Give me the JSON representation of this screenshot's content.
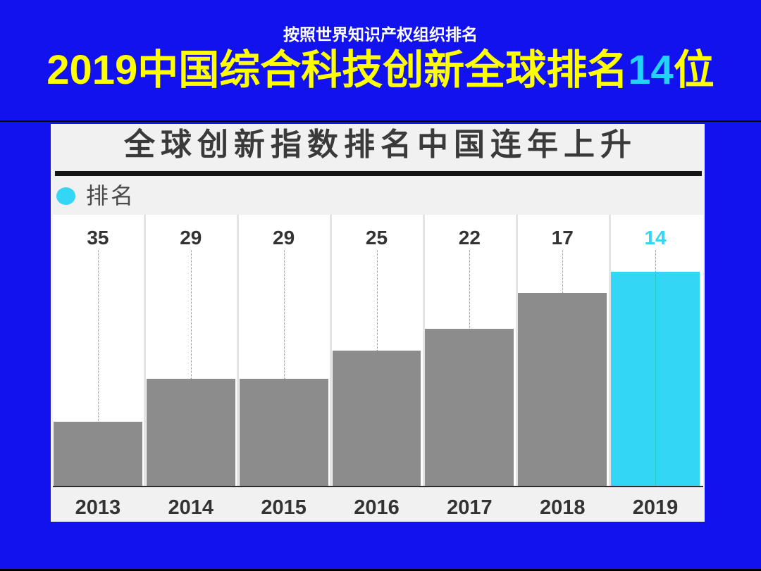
{
  "header": {
    "subtitle": "按照世界知识产权组织排名",
    "title_prefix": "2019中国综合科技创新全球排名",
    "title_highlight": "14",
    "title_suffix": "位"
  },
  "colors": {
    "background": "#1212ef",
    "title": "#ffff00",
    "title_highlight": "#22d3f8",
    "subtitle": "#ffffff",
    "chart_panel": "#f1f1f1"
  },
  "chart_data": {
    "type": "bar",
    "title": "全球创新指数排名中国连年上升",
    "categories": [
      "2013",
      "2014",
      "2015",
      "2016",
      "2017",
      "2018",
      "2019"
    ],
    "series": [
      {
        "name": "排名",
        "values": [
          35,
          29,
          29,
          25,
          22,
          17,
          14
        ],
        "color": "#8c8c8c"
      }
    ],
    "highlight": {
      "category": "2019",
      "color": "#33d6f5"
    },
    "legend": {
      "position": "top-left",
      "color": "#33d6f5"
    },
    "data_labels": true,
    "xlabel": "",
    "ylabel": "",
    "ylim": [
      44,
      6
    ],
    "y_inverted": true,
    "grid": "vertical"
  }
}
